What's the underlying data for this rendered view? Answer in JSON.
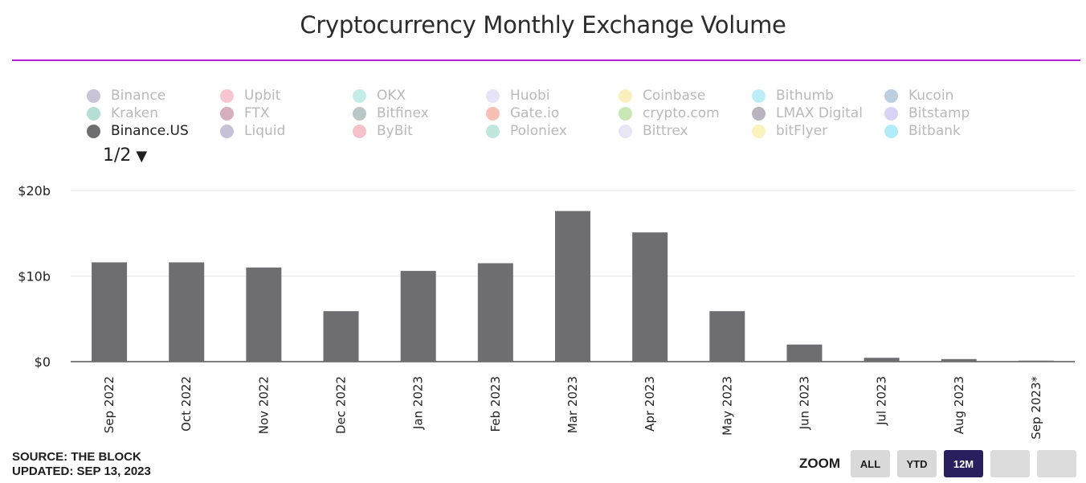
{
  "title": "Cryptocurrency Monthly Exchange Volume",
  "legend": {
    "items": [
      {
        "label": "Binance",
        "color": "#c9c3d8",
        "active": false
      },
      {
        "label": "Upbit",
        "color": "#f8c6d0",
        "active": false
      },
      {
        "label": "OKX",
        "color": "#c4ece8",
        "active": false
      },
      {
        "label": "Huobi",
        "color": "#e6e4f6",
        "active": false
      },
      {
        "label": "Coinbase",
        "color": "#fbf0bd",
        "active": false
      },
      {
        "label": "Bithumb",
        "color": "#bdeef8",
        "active": false
      },
      {
        "label": "Kucoin",
        "color": "#bccfe0",
        "active": false
      },
      {
        "label": "Kraken",
        "color": "#b5ded6",
        "active": false
      },
      {
        "label": "FTX",
        "color": "#d6afbf",
        "active": false
      },
      {
        "label": "Bitfinex",
        "color": "#b9c7c9",
        "active": false
      },
      {
        "label": "Gate.io",
        "color": "#f6c1b3",
        "active": false
      },
      {
        "label": "crypto.com",
        "color": "#c9e8b6",
        "active": false
      },
      {
        "label": "LMAX Digital",
        "color": "#b8b3be",
        "active": false
      },
      {
        "label": "Bitstamp",
        "color": "#d9d3f6",
        "active": false
      },
      {
        "label": "Binance.US",
        "color": "#6e6e70",
        "active": true
      },
      {
        "label": "Liquid",
        "color": "#c6c1d6",
        "active": false
      },
      {
        "label": "ByBit",
        "color": "#f5c2ca",
        "active": false
      },
      {
        "label": "Poloniex",
        "color": "#c0e7de",
        "active": false
      },
      {
        "label": "Bittrex",
        "color": "#e8e6f4",
        "active": false
      },
      {
        "label": "bitFlyer",
        "color": "#faf3bf",
        "active": false
      },
      {
        "label": "Bitbank",
        "color": "#b3ecf9",
        "active": false
      }
    ],
    "pager": "1/2",
    "pager_arrow": "▼"
  },
  "chart_data": {
    "type": "bar",
    "title": "Cryptocurrency Monthly Exchange Volume",
    "xlabel": "",
    "ylabel": "",
    "categories": [
      "Sep 2022",
      "Oct 2022",
      "Nov 2022",
      "Dec 2022",
      "Jan 2023",
      "Feb 2023",
      "Mar 2023",
      "Apr 2023",
      "May 2023",
      "Jun 2023",
      "Jul 2023",
      "Aug 2023",
      "Sep 2023*"
    ],
    "series": [
      {
        "name": "Binance.US",
        "color": "#6e6e70",
        "values": [
          11.6,
          11.6,
          11.0,
          5.9,
          10.6,
          11.5,
          17.6,
          15.1,
          5.9,
          2.0,
          0.45,
          0.3,
          0.12
        ]
      }
    ],
    "ylim": [
      0,
      20
    ],
    "yticks": [
      {
        "value": 0,
        "label": "$0"
      },
      {
        "value": 10,
        "label": "$10b"
      },
      {
        "value": 20,
        "label": "$20b"
      }
    ],
    "unit": "billion USD",
    "grid": true
  },
  "footer": {
    "source": "SOURCE: THE BLOCK",
    "updated": "UPDATED: SEP 13, 2023"
  },
  "zoom": {
    "label": "ZOOM",
    "buttons": [
      {
        "label": "ALL",
        "active": false
      },
      {
        "label": "YTD",
        "active": false
      },
      {
        "label": "12M",
        "active": true
      },
      {
        "label": "",
        "active": false
      },
      {
        "label": "",
        "active": false
      }
    ]
  }
}
